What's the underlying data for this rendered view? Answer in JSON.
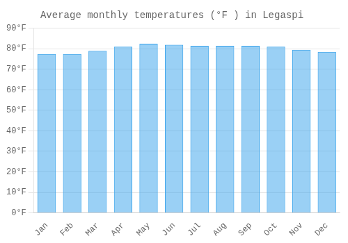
{
  "chart_data": {
    "type": "bar",
    "title": "Average monthly temperatures (°F ) in Legaspi",
    "categories": [
      "Jan",
      "Feb",
      "Mar",
      "Apr",
      "May",
      "Jun",
      "Jul",
      "Aug",
      "Sep",
      "Oct",
      "Nov",
      "Dec"
    ],
    "values": [
      77.5,
      77.5,
      79.0,
      81.0,
      82.5,
      82.0,
      81.5,
      81.5,
      81.5,
      81.0,
      79.5,
      78.5
    ],
    "ylim": [
      0,
      90
    ],
    "yticks": [
      {
        "value": 0,
        "label": "0°F"
      },
      {
        "value": 10,
        "label": "10°F"
      },
      {
        "value": 20,
        "label": "20°F"
      },
      {
        "value": 30,
        "label": "30°F"
      },
      {
        "value": 40,
        "label": "40°F"
      },
      {
        "value": 50,
        "label": "50°F"
      },
      {
        "value": 60,
        "label": "60°F"
      },
      {
        "value": 70,
        "label": "70°F"
      },
      {
        "value": 80,
        "label": "80°F"
      },
      {
        "value": 90,
        "label": "90°F"
      }
    ],
    "grid": true
  }
}
